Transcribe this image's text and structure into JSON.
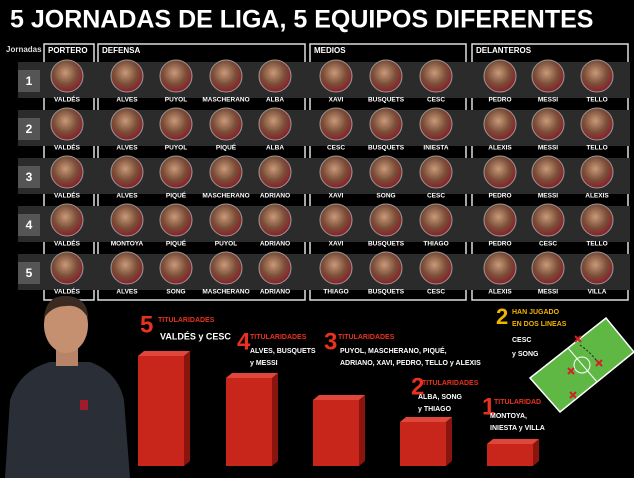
{
  "title": "5 JORNADAS DE LIGA, 5 EQUIPOS DIFERENTES",
  "headers": {
    "jornadas": "Jornadas",
    "portero": "PORTERO",
    "defensa": "DEFENSA",
    "medios": "MEDIOS",
    "delanteros": "DELANTEROS"
  },
  "rounds": [
    {
      "number": 1,
      "portero": [
        "VALDÉS"
      ],
      "defensa": [
        "ALVES",
        "PUYOL",
        "MASCHERANO",
        "ALBA"
      ],
      "medios": [
        "XAVI",
        "BUSQUETS",
        "CESC"
      ],
      "delanteros": [
        "PEDRO",
        "MESSI",
        "TELLO"
      ]
    },
    {
      "number": 2,
      "portero": [
        "VALDÉS"
      ],
      "defensa": [
        "ALVES",
        "PUYOL",
        "PIQUÉ",
        "ALBA"
      ],
      "medios": [
        "CESC",
        "BUSQUETS",
        "INIESTA"
      ],
      "delanteros": [
        "ALEXIS",
        "MESSI",
        "TELLO"
      ]
    },
    {
      "number": 3,
      "portero": [
        "VALDÉS"
      ],
      "defensa": [
        "ALVES",
        "PIQUÉ",
        "MASCHERANO",
        "ADRIANO"
      ],
      "medios": [
        "XAVI",
        "SONG",
        "CESC"
      ],
      "delanteros": [
        "PEDRO",
        "MESSI",
        "ALEXIS"
      ]
    },
    {
      "number": 4,
      "portero": [
        "VALDÉS"
      ],
      "defensa": [
        "MONTOYA",
        "PIQUÉ",
        "PUYOL",
        "ADRIANO"
      ],
      "medios": [
        "XAVI",
        "BUSQUETS",
        "THIAGO"
      ],
      "delanteros": [
        "PEDRO",
        "CESC",
        "TELLO"
      ]
    },
    {
      "number": 5,
      "portero": [
        "VALDÉS"
      ],
      "defensa": [
        "ALVES",
        "SONG",
        "MASCHERANO",
        "ADRIANO"
      ],
      "medios": [
        "THIAGO",
        "BUSQUETS",
        "CESC"
      ],
      "delanteros": [
        "ALEXIS",
        "MESSI",
        "VILLA"
      ]
    }
  ],
  "starters": [
    {
      "count": 5,
      "label": "TITULARIDADES",
      "lines": [
        "VALDÉS y CESC"
      ]
    },
    {
      "count": 4,
      "label": "TITULARIDADES",
      "lines": [
        "ALVES, BUSQUETS",
        "y MESSI"
      ]
    },
    {
      "count": 3,
      "label": "TITULARIDADES",
      "lines": [
        "PUYOL, MASCHERANO, PIQUÉ,",
        "ADRIANO, XAVI, PEDRO, TELLO y ALEXIS"
      ]
    },
    {
      "count": 2,
      "label": "TITULARIDADES",
      "lines": [
        "ALBA, SONG",
        "y THIAGO"
      ]
    },
    {
      "count": 1,
      "label": "TITULARIDAD",
      "lines": [
        "MONTOYA,",
        "INIESTA y VILLA"
      ]
    }
  ],
  "two_lines": {
    "count": 2,
    "label": [
      "HAN JUGADO",
      "EN DOS LINEAS"
    ],
    "players": [
      "CESC",
      "y SONG"
    ]
  }
}
